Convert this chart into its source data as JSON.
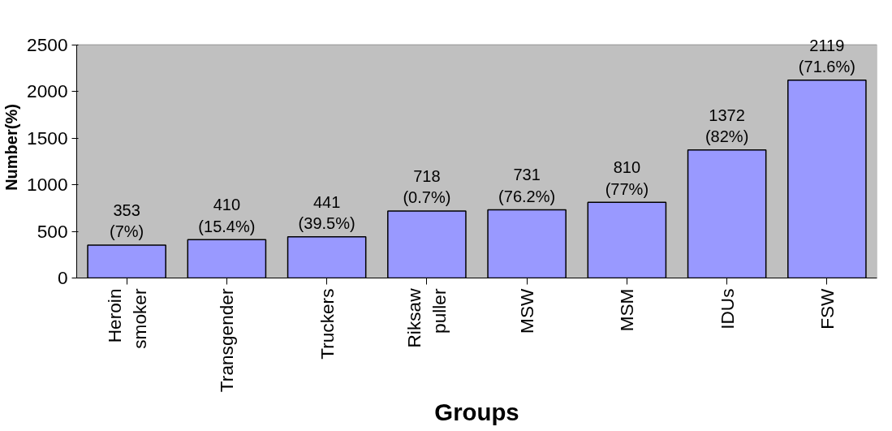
{
  "chart_data": {
    "type": "bar",
    "xlabel": "Groups",
    "ylabel": "Number(%)",
    "categories": [
      "Heroin smoker",
      "Transgender",
      "Truckers",
      "Riksaw puller",
      "MSW",
      "MSM",
      "IDUs",
      "FSW"
    ],
    "values": [
      353,
      410,
      441,
      718,
      731,
      810,
      1372,
      2119
    ],
    "value_labels": [
      "353\n(7%)",
      "410\n(15.4%)",
      "441\n(39.5%)",
      "718\n(0.7%)",
      "731\n(76.2%)",
      "810\n(77%)",
      "1372\n(82%)",
      "2119\n(71.6%)"
    ],
    "color": "#9999ff",
    "ylim": [
      0,
      2500
    ],
    "yticks": [
      0,
      500,
      1000,
      1500,
      2000,
      2500
    ],
    "grid": false
  }
}
